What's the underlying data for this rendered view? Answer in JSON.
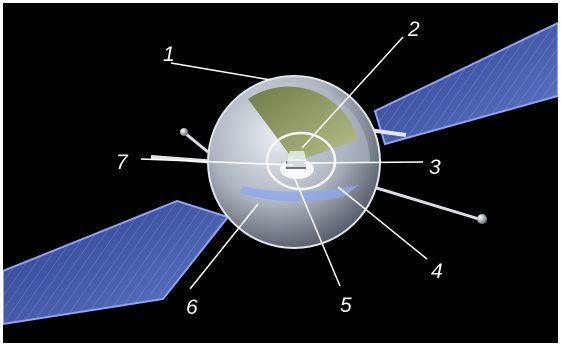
{
  "figure": {
    "background": "#000000",
    "frame_color": "#ffffff",
    "callouts": [
      {
        "label": "1"
      },
      {
        "label": "2"
      },
      {
        "label": "3"
      },
      {
        "label": "4"
      },
      {
        "label": "5"
      },
      {
        "label": "6"
      },
      {
        "label": "7"
      }
    ],
    "icons": {
      "satellite": "satellite-illustration",
      "left_panel": "solar-panel",
      "right_panel": "solar-panel"
    }
  }
}
